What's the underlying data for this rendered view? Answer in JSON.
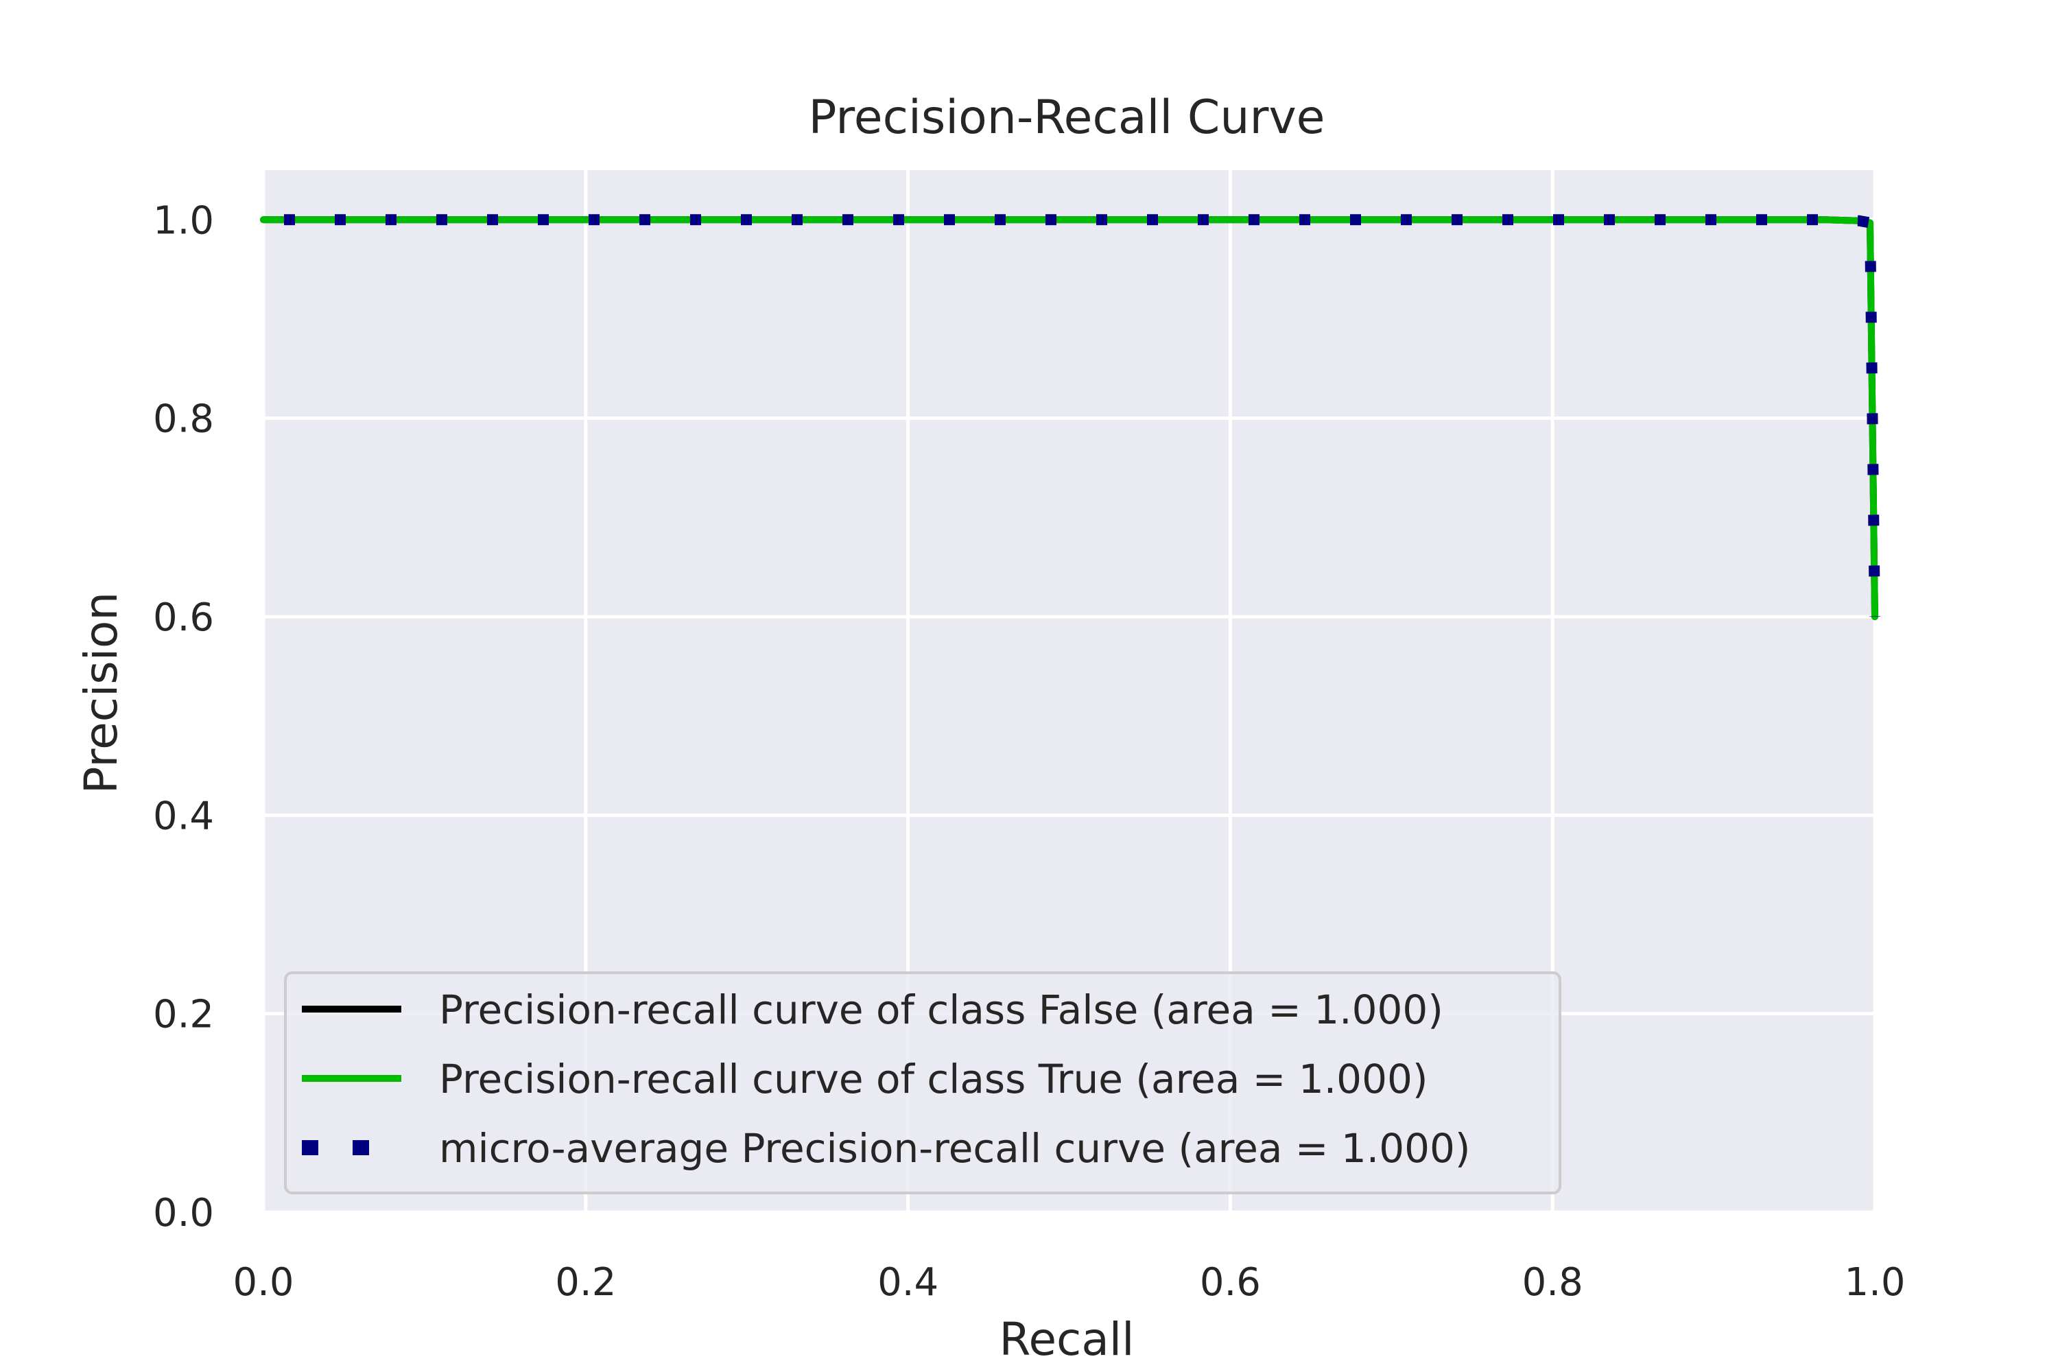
{
  "chart_data": {
    "type": "line",
    "title": "Precision-Recall Curve",
    "xlabel": "Recall",
    "ylabel": "Precision",
    "xlim": [
      0.0,
      1.0
    ],
    "ylim": [
      0.0,
      1.05
    ],
    "xticks": [
      "0.0",
      "0.2",
      "0.4",
      "0.6",
      "0.8",
      "1.0"
    ],
    "yticks": [
      "0.0",
      "0.2",
      "0.4",
      "0.6",
      "0.8",
      "1.0"
    ],
    "grid": true,
    "legend_position": "lower left",
    "series": [
      {
        "name": "Precision-recall curve of class False (area = 1.000)",
        "color": "#000000",
        "style": "solid",
        "x": [
          0.0,
          0.97,
          0.99,
          0.997,
          1.0
        ],
        "y": [
          1.0,
          1.0,
          0.999,
          0.997,
          0.6
        ]
      },
      {
        "name": "Precision-recall curve of class True (area = 1.000)",
        "color": "#00bb00",
        "style": "solid",
        "x": [
          0.0,
          0.97,
          0.99,
          0.997,
          1.0
        ],
        "y": [
          1.0,
          1.0,
          0.999,
          0.997,
          0.6
        ]
      },
      {
        "name": "micro-average Precision-recall curve (area = 1.000)",
        "color": "#000080",
        "style": "dotted",
        "x": [
          0.0,
          0.97,
          0.99,
          0.997,
          1.0
        ],
        "y": [
          1.0,
          1.0,
          0.999,
          0.997,
          0.6
        ]
      }
    ]
  },
  "colors": {
    "plot_background": "#eaeaf2",
    "grid": "#ffffff",
    "text": "#262626"
  }
}
